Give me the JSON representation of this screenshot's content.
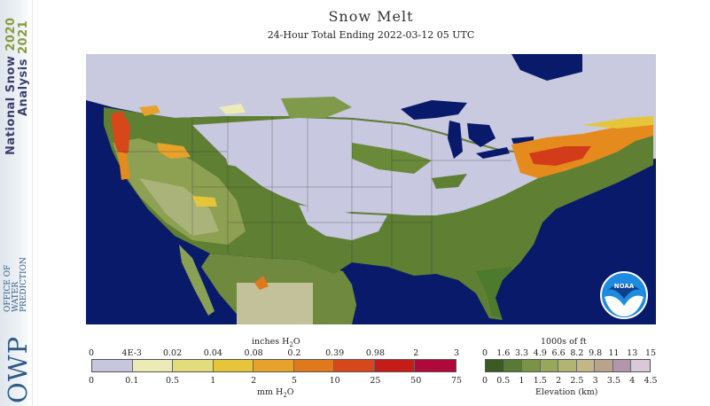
{
  "header": {
    "title": "Snow Melt",
    "subtitle": "24-Hour Total Ending 2022-03-12 05 UTC"
  },
  "sidebar": {
    "product_line1_word1": "National",
    "product_line1_word2": "Snow",
    "product_line1_year": "2020",
    "product_line2_word": "Analysis",
    "product_line2_year": "2021",
    "org_acronym": "OWP",
    "org_name_line1": "OFFICE OF",
    "org_name_line2": "WATER",
    "org_name_line3": "PREDICTION"
  },
  "map": {
    "logo_text": "NOAA",
    "colors": {
      "ocean": "#0a1a6b",
      "snow_none": "#c8c8e0",
      "canada": "#c9c9df",
      "low_elev": "#5a7a33",
      "mid_elev": "#7f9a4a",
      "high_elev": "#aab37a",
      "melt_light": "#e6e2a6",
      "melt_orange": "#e58a1c",
      "melt_red": "#d23c1a"
    }
  },
  "legend_melt": {
    "top_unit": "inches H2O",
    "bottom_unit": "mm H2O",
    "inch_ticks": [
      "0",
      "4E-3",
      "0.02",
      "0.04",
      "0.08",
      "0.2",
      "0.39",
      "0.98",
      "2",
      "3"
    ],
    "mm_ticks": [
      "0",
      "0.1",
      "0.5",
      "1",
      "2",
      "5",
      "10",
      "25",
      "50",
      "75"
    ],
    "colors": [
      "#c6c6de",
      "#ecebb5",
      "#e2dc7b",
      "#e7c53a",
      "#e6a22a",
      "#e0781c",
      "#d8471a",
      "#c61c18",
      "#b0083a"
    ]
  },
  "legend_elev": {
    "top_unit": "1000s of ft",
    "bottom_unit": "Elevation (km)",
    "ft_ticks": [
      "0",
      "1.6",
      "3.3",
      "4.9",
      "6.6",
      "8.2",
      "9.8",
      "11",
      "13",
      "15"
    ],
    "km_ticks": [
      "0",
      "0.5",
      "1",
      "1.5",
      "2",
      "2.5",
      "3",
      "3.5",
      "4",
      "4.5"
    ],
    "colors": [
      "#3d5a24",
      "#587a34",
      "#789444",
      "#98a85a",
      "#b2b472",
      "#c2b886",
      "#b9a38c",
      "#b495ae",
      "#d8c8d8"
    ]
  }
}
